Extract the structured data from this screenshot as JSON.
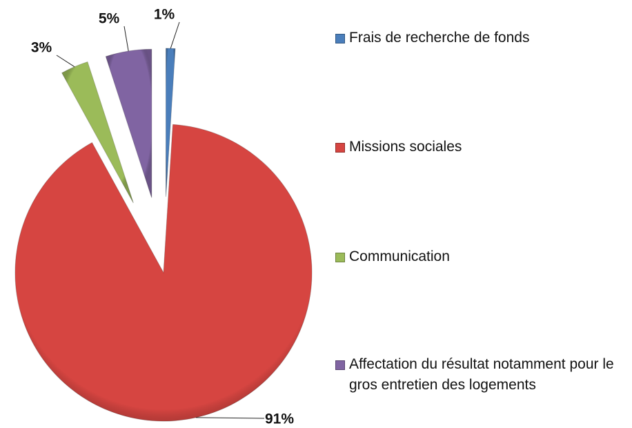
{
  "chart_data": {
    "type": "pie",
    "categories": [
      "Frais de recherche de fonds",
      "Missions sociales",
      "Communication",
      "Affectation du résultat notamment pour le gros entretien des logements"
    ],
    "values": [
      1,
      91,
      3,
      5
    ],
    "value_labels": [
      "1%",
      "91%",
      "3%",
      "5%"
    ],
    "colors": [
      "#4a7ebb",
      "#d64541",
      "#9bbb59",
      "#8064a2"
    ],
    "legend": "right"
  }
}
